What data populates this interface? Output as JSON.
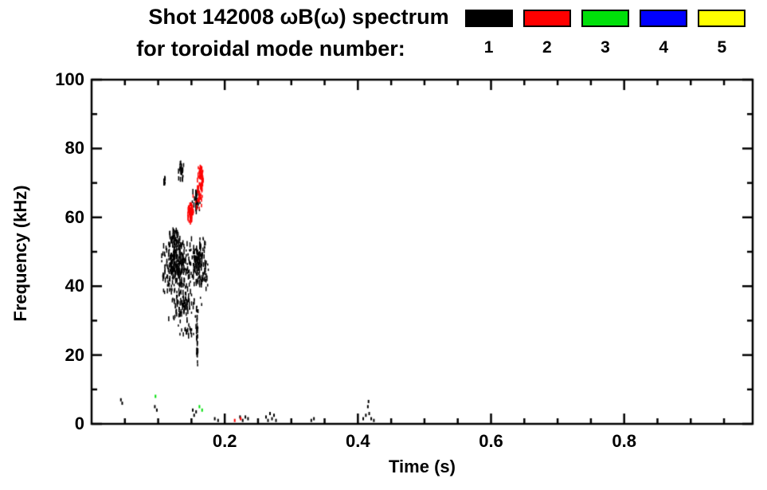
{
  "header": {
    "title_line1": "Shot 142008 ωB(ω) spectrum",
    "title_line2": "for toroidal mode number:"
  },
  "legend": {
    "items": [
      {
        "label": "1",
        "color": "#000000"
      },
      {
        "label": "2",
        "color": "#ff0000"
      },
      {
        "label": "3",
        "color": "#00e00a"
      },
      {
        "label": "4",
        "color": "#0000ff"
      },
      {
        "label": "5",
        "color": "#ffff00"
      }
    ]
  },
  "chart_data": {
    "type": "scatter",
    "title": "Shot 142008 ωB(ω) spectrum for toroidal mode number:",
    "xlabel": "Time (s)",
    "ylabel": "Frequency (kHz)",
    "xlim": [
      0,
      0.993
    ],
    "ylim": [
      0,
      100
    ],
    "grid": false,
    "legend_position": "top-right",
    "x_major_ticks": [
      0.2,
      0.4,
      0.6,
      0.8
    ],
    "x_tick_labels": [
      "0.2",
      "0.4",
      "0.6",
      "0.8"
    ],
    "x_minor_step": 0.05,
    "y_major_ticks": [
      0,
      20,
      40,
      60,
      80,
      100
    ],
    "y_tick_labels": [
      "0",
      "20",
      "40",
      "60",
      "80",
      "100"
    ],
    "y_minor_step": 10,
    "series": [
      {
        "name": "mode 1",
        "color": "#000000",
        "clusters": [
          {
            "t": [
              0.103,
              0.15
            ],
            "f": [
              37,
              54
            ],
            "n": 300
          },
          {
            "t": [
              0.145,
              0.176
            ],
            "f": [
              39,
              55
            ],
            "n": 160
          },
          {
            "t": [
              0.113,
              0.135
            ],
            "f": [
              52,
              57
            ],
            "n": 40
          },
          {
            "t": [
              0.11,
              0.168
            ],
            "f": [
              30,
              39
            ],
            "n": 90
          },
          {
            "t": [
              0.125,
              0.16
            ],
            "f": [
              24,
              31
            ],
            "n": 22
          },
          {
            "t": [
              0.156,
              0.159
            ],
            "f": [
              15,
              36
            ],
            "n": 30
          },
          {
            "t": [
              0.128,
              0.139
            ],
            "f": [
              70,
              76.5
            ],
            "n": 30
          },
          {
            "t": [
              0.106,
              0.112
            ],
            "f": [
              69,
              72
            ],
            "n": 10
          },
          {
            "t": [
              0.15,
              0.163
            ],
            "f": [
              61,
              69
            ],
            "n": 35
          }
        ],
        "points": [
          [
            0.044,
            7
          ],
          [
            0.046,
            6
          ],
          [
            0.095,
            5
          ],
          [
            0.098,
            4
          ],
          [
            0.152,
            4
          ],
          [
            0.154,
            2.5
          ],
          [
            0.157,
            3.5
          ],
          [
            0.185,
            1.5
          ],
          [
            0.19,
            1
          ],
          [
            0.223,
            2
          ],
          [
            0.227,
            1
          ],
          [
            0.231,
            2
          ],
          [
            0.235,
            1.5
          ],
          [
            0.25,
            1
          ],
          [
            0.262,
            2
          ],
          [
            0.265,
            1
          ],
          [
            0.268,
            3
          ],
          [
            0.271,
            1.5
          ],
          [
            0.274,
            2.5
          ],
          [
            0.277,
            1
          ],
          [
            0.33,
            1
          ],
          [
            0.334,
            1.5
          ],
          [
            0.408,
            1.5
          ],
          [
            0.412,
            2.5
          ],
          [
            0.415,
            5
          ],
          [
            0.416,
            6.5
          ],
          [
            0.417,
            3
          ],
          [
            0.42,
            1.5
          ],
          [
            0.424,
            1
          ]
        ]
      },
      {
        "name": "mode 2",
        "color": "#ff0000",
        "clusters": [
          {
            "t": [
              0.143,
              0.152
            ],
            "f": [
              58.5,
              64.5
            ],
            "n": 55
          },
          {
            "t": [
              0.157,
              0.168
            ],
            "f": [
              64,
              75.5
            ],
            "n": 65
          },
          {
            "t": [
              0.149,
              0.167
            ],
            "f": [
              56,
              74
            ],
            "n": 12
          }
        ],
        "points": [
          [
            0.215,
            1
          ],
          [
            0.224,
            1.5
          ]
        ]
      },
      {
        "name": "mode 3",
        "color": "#00e00a",
        "clusters": [],
        "points": [
          [
            0.096,
            8
          ],
          [
            0.162,
            5
          ],
          [
            0.166,
            4
          ]
        ]
      },
      {
        "name": "mode 4",
        "color": "#0000ff",
        "clusters": [],
        "points": []
      },
      {
        "name": "mode 5",
        "color": "#ffff00",
        "clusters": [],
        "points": []
      }
    ]
  }
}
